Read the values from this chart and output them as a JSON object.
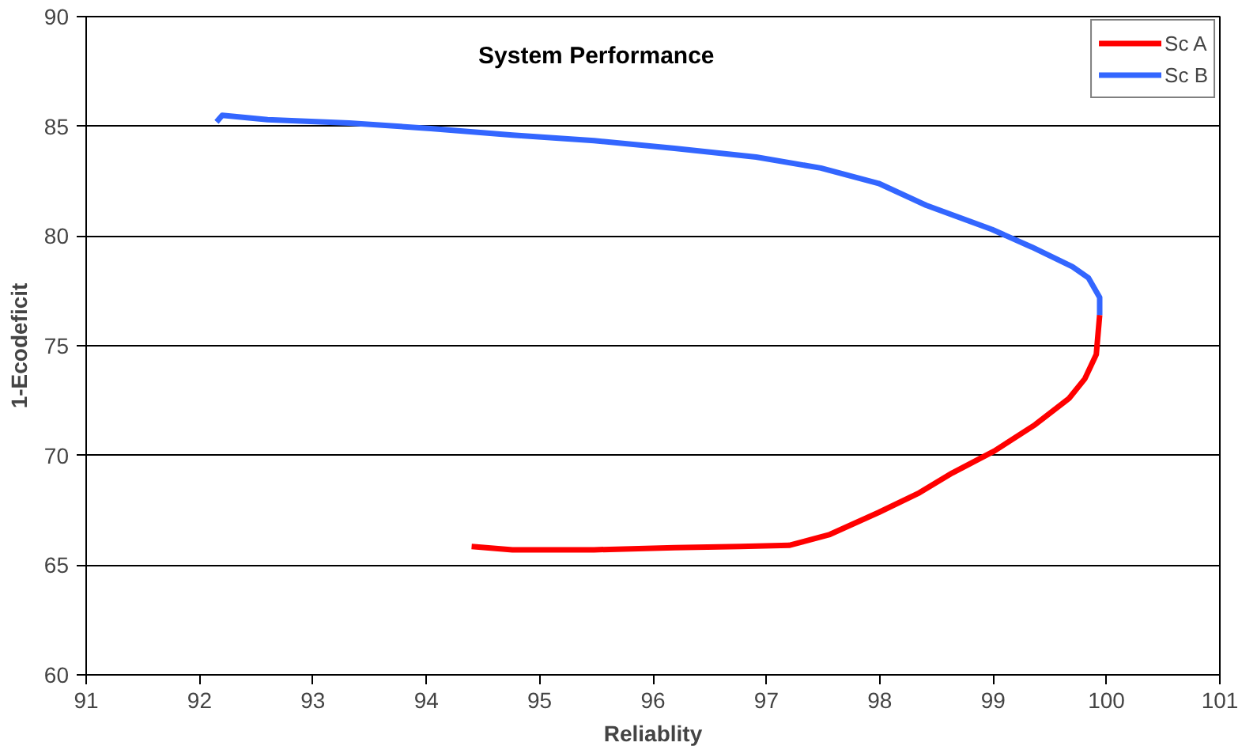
{
  "chart_data": {
    "type": "line",
    "title": "System Performance",
    "xlabel": "Reliablity",
    "ylabel": "1-Ecodeficit",
    "xlim": [
      91,
      101
    ],
    "xticks": [
      91,
      92,
      93,
      94,
      95,
      96,
      97,
      98,
      99,
      100,
      101
    ],
    "ylim": [
      60,
      90
    ],
    "yticks": [
      60,
      65,
      70,
      75,
      80,
      85,
      90
    ],
    "grid": "y",
    "legend": "top right",
    "marker": "none",
    "line_style": "solid",
    "series": [
      {
        "name": "Sc A",
        "color": "#ff0000",
        "x": [
          94.4,
          94.76,
          95.48,
          96.19,
          96.77,
          97.2,
          97.56,
          97.99,
          98.35,
          98.64,
          99.01,
          99.37,
          99.67,
          99.81,
          99.91,
          99.94
        ],
        "values": [
          65.85,
          65.7,
          65.7,
          65.8,
          65.85,
          65.9,
          66.4,
          67.4,
          68.3,
          69.2,
          70.2,
          71.4,
          72.6,
          73.5,
          74.6,
          76.4
        ]
      },
      {
        "name": "Sc B",
        "color": "#3366ff",
        "x": [
          99.94,
          99.94,
          99.84,
          99.7,
          99.34,
          98.99,
          98.41,
          97.99,
          97.48,
          96.91,
          96.19,
          95.48,
          94.76,
          94.04,
          93.32,
          92.6,
          92.2,
          92.15
        ],
        "values": [
          76.4,
          77.2,
          78.1,
          78.6,
          79.5,
          80.3,
          81.4,
          82.4,
          83.1,
          83.6,
          84.0,
          84.35,
          84.6,
          84.9,
          85.15,
          85.3,
          85.5,
          85.2
        ]
      }
    ]
  }
}
